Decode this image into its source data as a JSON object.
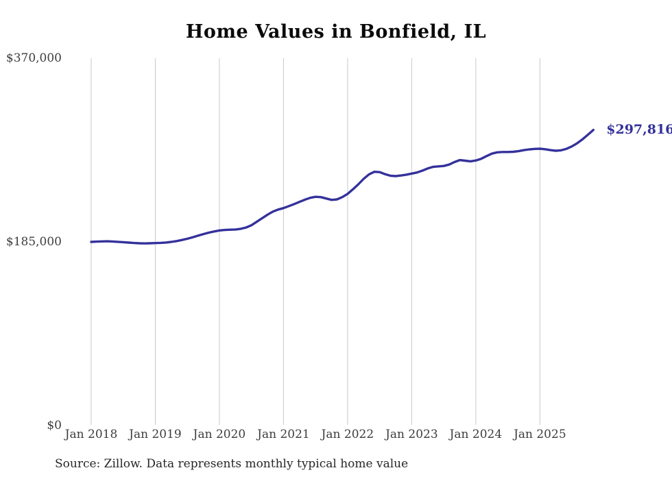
{
  "title": "Home Values in Bonfield, IL",
  "source_note": "Source: Zillow. Data represents monthly typical home value",
  "end_label": "$297,816",
  "colors": {
    "line": "#34319b",
    "grid": "#c9c9c9",
    "axis_text": "#3d3d3d",
    "title_text": "#0a0a0a",
    "background": "#ffffff"
  },
  "chart_data": {
    "type": "line",
    "title": "Home Values in Bonfield, IL",
    "series_name": "Typical home value",
    "x_start_month": "Jan 2018",
    "x_end_month": "Nov 2025",
    "frequency": "monthly",
    "x_tick_labels": [
      "Jan 2018",
      "Jan 2019",
      "Jan 2020",
      "Jan 2021",
      "Jan 2022",
      "Jan 2023",
      "Jan 2024",
      "Jan 2025"
    ],
    "y_tick_labels": [
      "$370,000",
      "$185,000",
      "$0"
    ],
    "y_tick_values": [
      370000,
      185000,
      0
    ],
    "ylim": [
      0,
      370000
    ],
    "grid": "vertical-only",
    "legend": "none",
    "final_value": 297816,
    "values": [
      185000,
      185300,
      185500,
      185600,
      185400,
      185100,
      184700,
      184300,
      183900,
      183600,
      183500,
      183600,
      183800,
      184000,
      184400,
      185000,
      185800,
      186900,
      188200,
      189700,
      191300,
      192900,
      194300,
      195500,
      196500,
      197000,
      197300,
      197500,
      198200,
      199500,
      201800,
      205300,
      208900,
      212400,
      215500,
      217600,
      219000,
      221000,
      223100,
      225300,
      227500,
      229400,
      230400,
      230100,
      228700,
      227300,
      227800,
      230100,
      233400,
      238000,
      243000,
      248500,
      253000,
      255600,
      255300,
      253300,
      251700,
      251300,
      251900,
      252700,
      253800,
      254900,
      256800,
      259000,
      260600,
      261100,
      261500,
      262900,
      265400,
      267400,
      266800,
      266200,
      267000,
      268700,
      271400,
      273900,
      275200,
      275600,
      275600,
      275800,
      276400,
      277400,
      278200,
      278700,
      278900,
      278300,
      277400,
      276800,
      277300,
      278800,
      281200,
      284500,
      288500,
      293000,
      297816
    ]
  }
}
